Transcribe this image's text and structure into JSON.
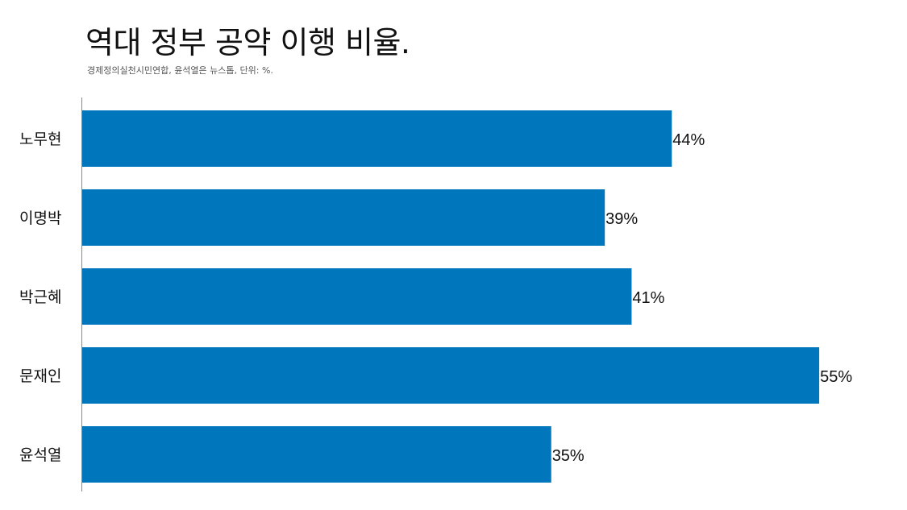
{
  "header": {
    "title": "역대 정부 공약 이행 비율.",
    "subtitle": "경제정의실천시민연합, 윤석열은 뉴스톱, 단위: %."
  },
  "colors": {
    "bar": "#0076BD",
    "axis": "#888888",
    "text": "#111111"
  },
  "chart_data": {
    "type": "bar",
    "orientation": "horizontal",
    "title": "역대 정부 공약 이행 비율.",
    "subtitle": "경제정의실천시민연합, 윤석열은 뉴스톱, 단위: %.",
    "categories": [
      "노무현",
      "이명박",
      "박근혜",
      "문재인",
      "윤석열"
    ],
    "values": [
      44,
      39,
      41,
      55,
      35
    ],
    "value_labels": [
      "44%",
      "39%",
      "41%",
      "55%",
      "35%"
    ],
    "unit": "%",
    "xlim": [
      0,
      65
    ],
    "grid": false,
    "legend": "none"
  }
}
